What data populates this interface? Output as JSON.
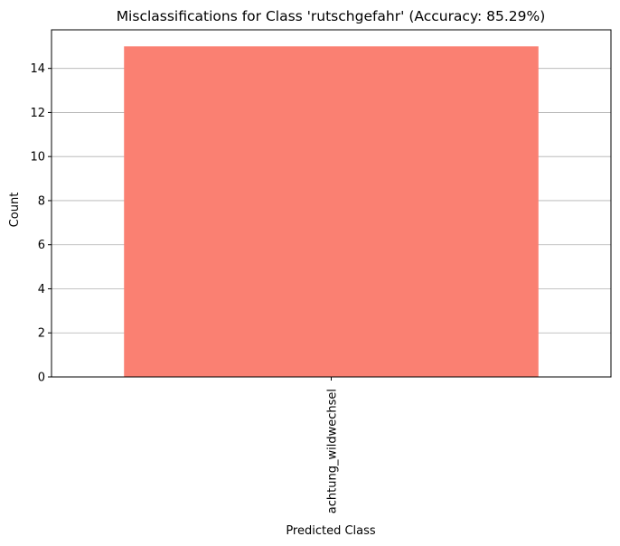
{
  "chart_data": {
    "type": "bar",
    "title": "Misclassifications for Class 'rutschgefahr' (Accuracy: 85.29%)",
    "xlabel": "Predicted Class",
    "ylabel": "Count",
    "categories": [
      "achtung_wildwechsel"
    ],
    "values": [
      15
    ],
    "ylim": [
      0,
      15.75
    ],
    "yticks": [
      0,
      2,
      4,
      6,
      8,
      10,
      12,
      14
    ],
    "grid": "y-major",
    "bar_color": "#fa8072",
    "grid_color": "#b0b0b0"
  }
}
